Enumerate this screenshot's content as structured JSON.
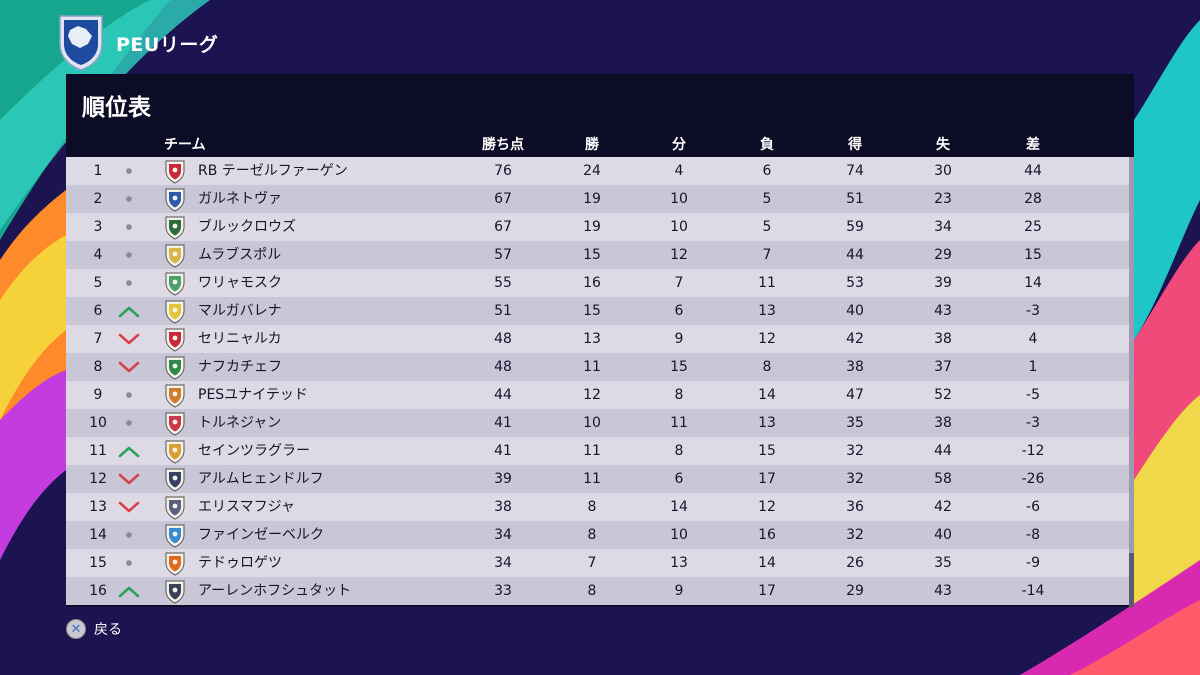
{
  "header": {
    "league_name": "PEUリーグ",
    "logo_icon": "peu-league-shield-icon"
  },
  "panel": {
    "title": "順位表"
  },
  "columns": {
    "team": "チーム",
    "points": "勝ち点",
    "wins": "勝",
    "draws": "分",
    "losses": "負",
    "goals_for": "得",
    "goals_against": "失",
    "goal_difference": "差"
  },
  "colors": {
    "trend_up": "#2aa35a",
    "trend_down": "#d6424c",
    "trend_same": "#8a8898"
  },
  "standings": [
    {
      "rank": "1",
      "trend": "same",
      "badge": "#c8283c",
      "team": "RB テーゼルファーゲン",
      "points": "76",
      "wins": "24",
      "draws": "4",
      "losses": "6",
      "goals_for": "74",
      "goals_against": "30",
      "goal_difference": "44"
    },
    {
      "rank": "2",
      "trend": "same",
      "badge": "#2b5aa8",
      "team": "ガルネトヴァ",
      "points": "67",
      "wins": "19",
      "draws": "10",
      "losses": "5",
      "goals_for": "51",
      "goals_against": "23",
      "goal_difference": "28"
    },
    {
      "rank": "3",
      "trend": "same",
      "badge": "#2f6b3a",
      "team": "ブルックロウズ",
      "points": "67",
      "wins": "19",
      "draws": "10",
      "losses": "5",
      "goals_for": "59",
      "goals_against": "34",
      "goal_difference": "25"
    },
    {
      "rank": "4",
      "trend": "same",
      "badge": "#d6b648",
      "team": "ムラブスポル",
      "points": "57",
      "wins": "15",
      "draws": "12",
      "losses": "7",
      "goals_for": "44",
      "goals_against": "29",
      "goal_difference": "15"
    },
    {
      "rank": "5",
      "trend": "same",
      "badge": "#4aa06a",
      "team": "ワリャモスク",
      "points": "55",
      "wins": "16",
      "draws": "7",
      "losses": "11",
      "goals_for": "53",
      "goals_against": "39",
      "goal_difference": "14"
    },
    {
      "rank": "6",
      "trend": "up",
      "badge": "#e0c63a",
      "team": "マルガバレナ",
      "points": "51",
      "wins": "15",
      "draws": "6",
      "losses": "13",
      "goals_for": "40",
      "goals_against": "43",
      "goal_difference": "-3"
    },
    {
      "rank": "7",
      "trend": "down",
      "badge": "#c8283c",
      "team": "セリニャルカ",
      "points": "48",
      "wins": "13",
      "draws": "9",
      "losses": "12",
      "goals_for": "42",
      "goals_against": "38",
      "goal_difference": "4"
    },
    {
      "rank": "8",
      "trend": "down",
      "badge": "#2f8a4a",
      "team": "ナフカチェフ",
      "points": "48",
      "wins": "11",
      "draws": "15",
      "losses": "8",
      "goals_for": "38",
      "goals_against": "37",
      "goal_difference": "1"
    },
    {
      "rank": "9",
      "trend": "same",
      "badge": "#d07a2a",
      "team": "PESユナイテッド",
      "points": "44",
      "wins": "12",
      "draws": "8",
      "losses": "14",
      "goals_for": "47",
      "goals_against": "52",
      "goal_difference": "-5"
    },
    {
      "rank": "10",
      "trend": "same",
      "badge": "#c83848",
      "team": "トルネジャン",
      "points": "41",
      "wins": "10",
      "draws": "11",
      "losses": "13",
      "goals_for": "35",
      "goals_against": "38",
      "goal_difference": "-3"
    },
    {
      "rank": "11",
      "trend": "up",
      "badge": "#d8a030",
      "team": "セインツラグラー",
      "points": "41",
      "wins": "11",
      "draws": "8",
      "losses": "15",
      "goals_for": "32",
      "goals_against": "44",
      "goal_difference": "-12"
    },
    {
      "rank": "12",
      "trend": "down",
      "badge": "#384060",
      "team": "アルムヒェンドルフ",
      "points": "39",
      "wins": "11",
      "draws": "6",
      "losses": "17",
      "goals_for": "32",
      "goals_against": "58",
      "goal_difference": "-26"
    },
    {
      "rank": "13",
      "trend": "down",
      "badge": "#5a6080",
      "team": "エリスマフジャ",
      "points": "38",
      "wins": "8",
      "draws": "14",
      "losses": "12",
      "goals_for": "36",
      "goals_against": "42",
      "goal_difference": "-6"
    },
    {
      "rank": "14",
      "trend": "same",
      "badge": "#3a8ad0",
      "team": "ファインゼーベルク",
      "points": "34",
      "wins": "8",
      "draws": "10",
      "losses": "16",
      "goals_for": "32",
      "goals_against": "40",
      "goal_difference": "-8"
    },
    {
      "rank": "15",
      "trend": "same",
      "badge": "#e06a1a",
      "team": "テドゥロゲツ",
      "points": "34",
      "wins": "7",
      "draws": "13",
      "losses": "14",
      "goals_for": "26",
      "goals_against": "35",
      "goal_difference": "-9"
    },
    {
      "rank": "16",
      "trend": "up",
      "badge": "#3a4058",
      "team": "アーレンホフシュタット",
      "points": "33",
      "wins": "8",
      "draws": "9",
      "losses": "17",
      "goals_for": "29",
      "goals_against": "43",
      "goal_difference": "-14"
    }
  ],
  "footer": {
    "back_label": "戻る",
    "back_icon": "cross-button-icon"
  }
}
